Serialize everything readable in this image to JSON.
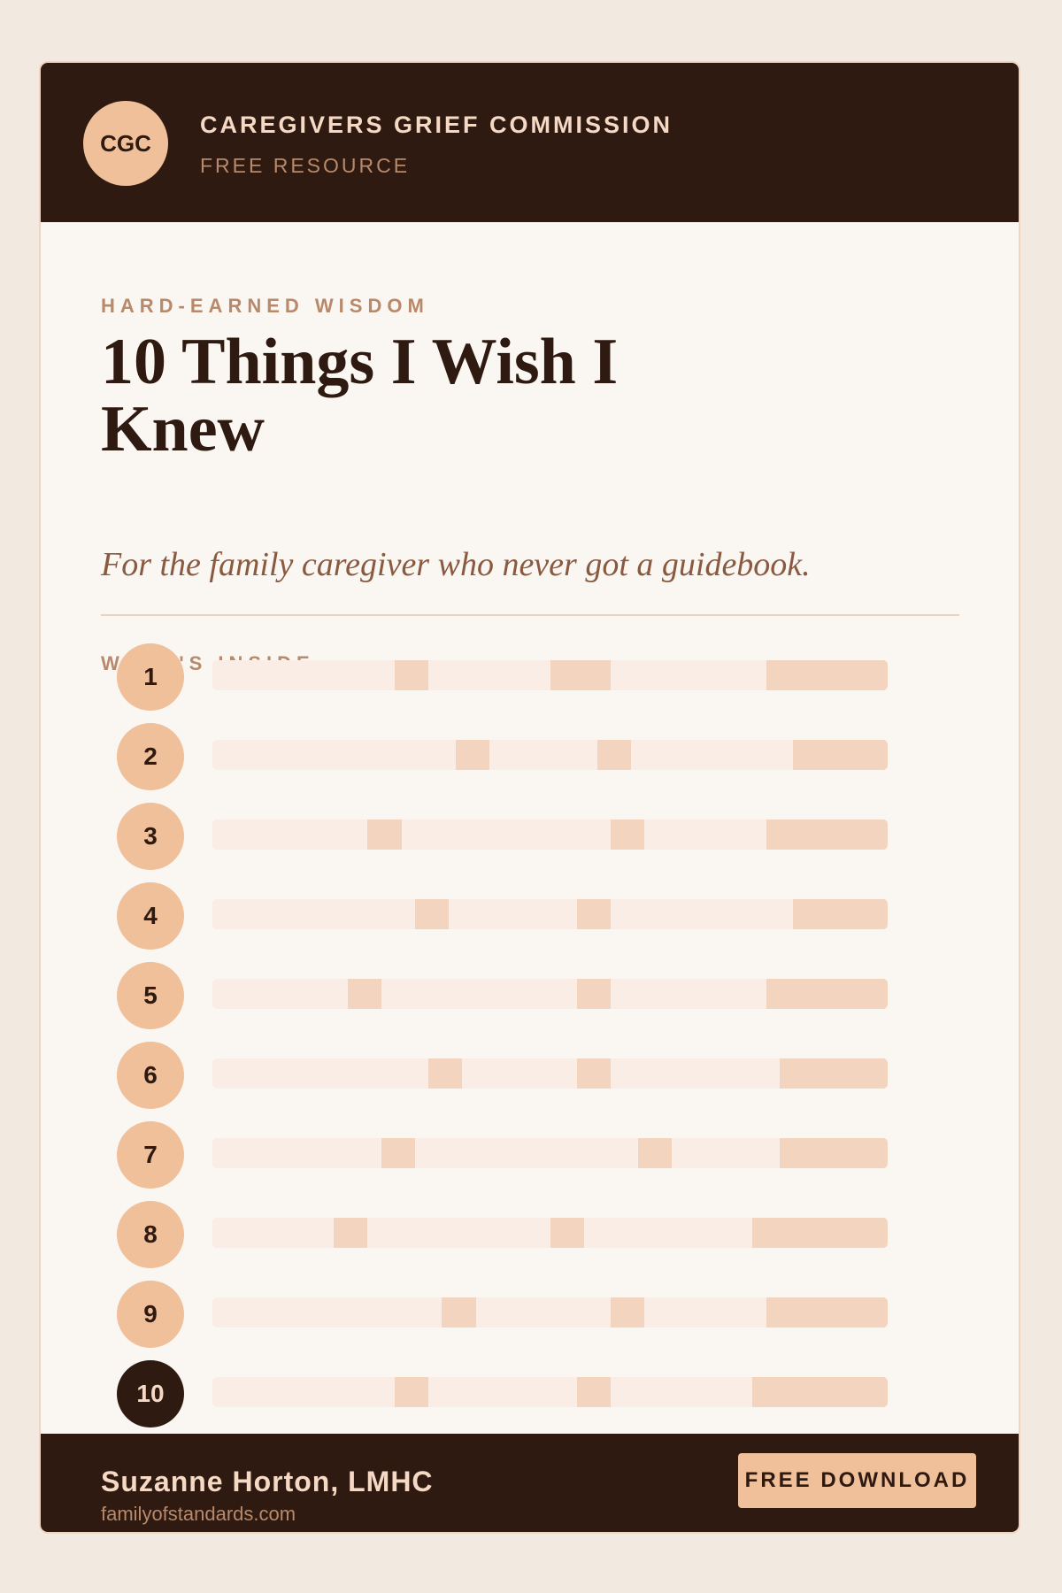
{
  "header": {
    "logo": "CGC",
    "org": "CAREGIVERS GRIEF COMMISSION",
    "tag": "FREE RESOURCE"
  },
  "eyebrow": "HARD-EARNED WISDOM",
  "title": "10 Things I Wish I Knew",
  "subtitle": "For the family caregiver who never got a guidebook.",
  "section_label": "WHAT'S INSIDE",
  "items": [
    1,
    2,
    3,
    4,
    5,
    6,
    7,
    8,
    9,
    10
  ],
  "footer": {
    "author": "Suzanne Horton, LMHC",
    "url": "familyofstandards.com",
    "button": "FREE DOWNLOAD"
  }
}
